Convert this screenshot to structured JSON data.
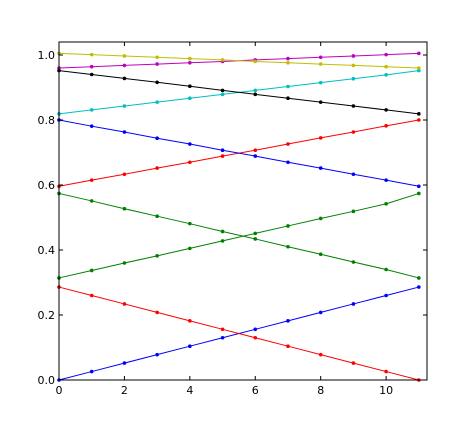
{
  "chart_data": {
    "type": "line",
    "title": "",
    "xlabel": "",
    "ylabel": "",
    "xlim": [
      0,
      11.25
    ],
    "ylim": [
      0,
      1.04
    ],
    "grid": false,
    "legend": "none",
    "x": [
      0,
      1,
      2,
      3,
      4,
      5,
      6,
      7,
      8,
      9,
      10,
      11
    ],
    "x_ticks": [
      0,
      2,
      4,
      6,
      8,
      10
    ],
    "x_tick_labels": [
      "0",
      "2",
      "4",
      "6",
      "8",
      "10"
    ],
    "y_ticks": [
      0,
      0.2,
      0.4,
      0.6,
      0.8,
      1.0
    ],
    "y_tick_labels": [
      "0.0",
      "0.2",
      "0.4",
      "0.6",
      "0.8",
      "1.0"
    ],
    "marker": "dot",
    "series": [
      {
        "color": "#0000ff",
        "values": [
          0,
          0.026,
          0.052,
          0.078,
          0.104,
          0.13,
          0.156,
          0.182,
          0.208,
          0.234,
          0.26,
          0.286
        ]
      },
      {
        "color": "#ff0000",
        "values": [
          0.286,
          0.26,
          0.234,
          0.208,
          0.182,
          0.156,
          0.13,
          0.104,
          0.078,
          0.052,
          0.026,
          0
        ]
      },
      {
        "color": "#008000",
        "values": [
          0.314,
          0.337,
          0.36,
          0.382,
          0.405,
          0.428,
          0.451,
          0.474,
          0.497,
          0.519,
          0.542,
          0.574
        ]
      },
      {
        "color": "#008000",
        "values": [
          0.574,
          0.551,
          0.527,
          0.504,
          0.481,
          0.457,
          0.434,
          0.41,
          0.387,
          0.363,
          0.34,
          0.314
        ]
      },
      {
        "color": "#ff0000",
        "values": [
          0.596,
          0.615,
          0.633,
          0.652,
          0.67,
          0.689,
          0.707,
          0.726,
          0.745,
          0.763,
          0.782,
          0.8
        ]
      },
      {
        "color": "#0000ff",
        "values": [
          0.8,
          0.781,
          0.763,
          0.744,
          0.726,
          0.707,
          0.689,
          0.67,
          0.652,
          0.633,
          0.615,
          0.596
        ]
      },
      {
        "color": "#00bfbf",
        "values": [
          0.819,
          0.831,
          0.843,
          0.855,
          0.867,
          0.879,
          0.891,
          0.903,
          0.915,
          0.927,
          0.939,
          0.952
        ]
      },
      {
        "color": "#000000",
        "values": [
          0.952,
          0.94,
          0.928,
          0.916,
          0.904,
          0.891,
          0.879,
          0.867,
          0.855,
          0.843,
          0.831,
          0.819
        ]
      },
      {
        "color": "#bf00bf",
        "values": [
          0.96,
          0.964,
          0.968,
          0.972,
          0.976,
          0.98,
          0.985,
          0.989,
          0.993,
          0.997,
          1.001,
          1.005
        ]
      },
      {
        "color": "#bfbf00",
        "values": [
          1.005,
          1.001,
          0.997,
          0.993,
          0.989,
          0.985,
          0.98,
          0.976,
          0.972,
          0.968,
          0.964,
          0.96
        ]
      }
    ]
  }
}
